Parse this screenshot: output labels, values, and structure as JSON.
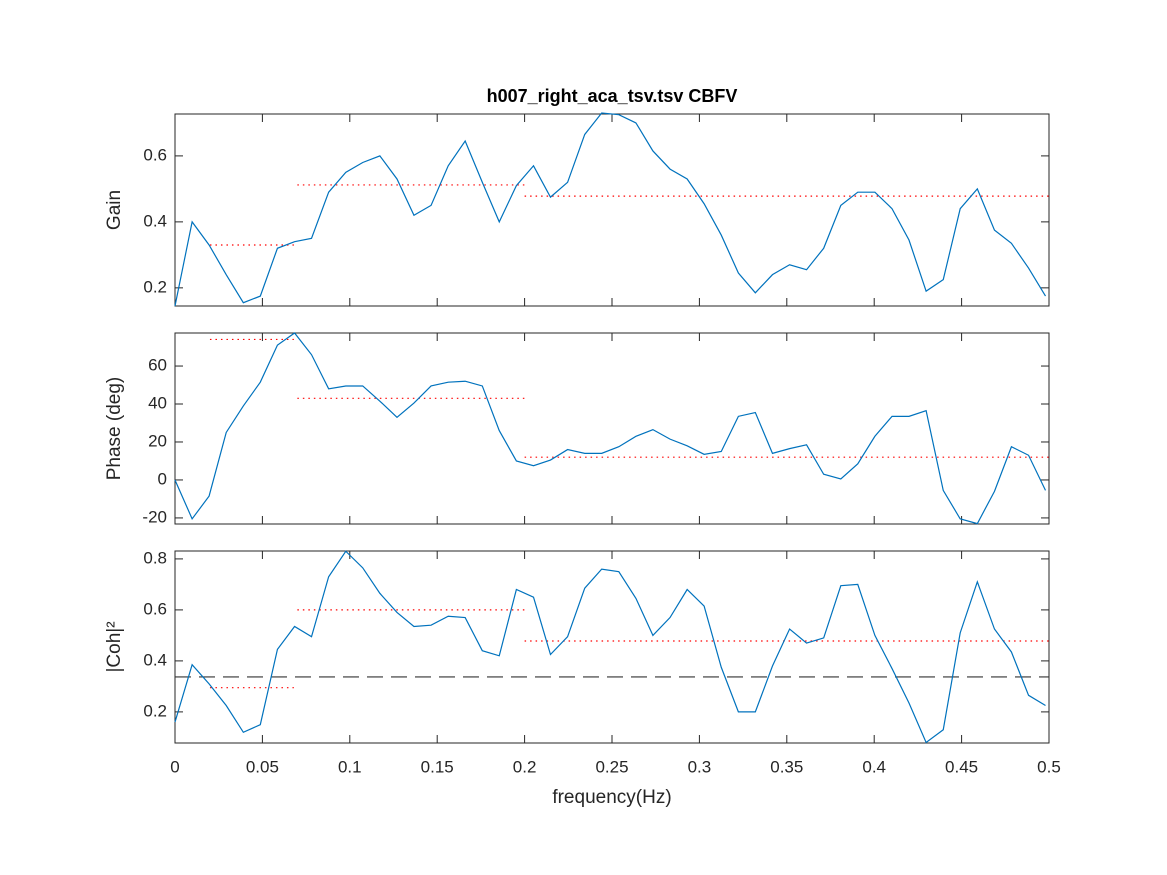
{
  "chart_data": [
    {
      "type": "line",
      "title": "h007_right_aca_tsv.tsv CBFV",
      "ylabel": "Gain",
      "x": [
        0,
        0.0098,
        0.0195,
        0.0293,
        0.0391,
        0.0488,
        0.0586,
        0.0684,
        0.0781,
        0.0879,
        0.0977,
        0.1074,
        0.1172,
        0.127,
        0.1367,
        0.1465,
        0.1563,
        0.166,
        0.1758,
        0.1855,
        0.1953,
        0.2051,
        0.2148,
        0.2246,
        0.2344,
        0.2441,
        0.2539,
        0.2637,
        0.2734,
        0.2832,
        0.293,
        0.3027,
        0.3125,
        0.3223,
        0.332,
        0.3418,
        0.3516,
        0.3613,
        0.3711,
        0.3809,
        0.3906,
        0.4004,
        0.4102,
        0.4199,
        0.4297,
        0.4395,
        0.4492,
        0.459,
        0.4688,
        0.4785,
        0.4883,
        0.498
      ],
      "values": [
        0.145,
        0.4,
        0.33,
        0.24,
        0.155,
        0.175,
        0.32,
        0.34,
        0.35,
        0.49,
        0.55,
        0.58,
        0.6,
        0.53,
        0.42,
        0.45,
        0.57,
        0.645,
        0.52,
        0.4,
        0.51,
        0.57,
        0.475,
        0.52,
        0.665,
        0.73,
        0.725,
        0.7,
        0.615,
        0.56,
        0.53,
        0.455,
        0.36,
        0.245,
        0.185,
        0.24,
        0.27,
        0.255,
        0.32,
        0.45,
        0.49,
        0.49,
        0.44,
        0.345,
        0.19,
        0.225,
        0.44,
        0.5,
        0.375,
        0.335,
        0.26,
        0.175
      ],
      "color": "#0072bd",
      "segments": [
        {
          "x": [
            0.02,
            0.068
          ],
          "value": 0.33
        },
        {
          "x": [
            0.07,
            0.2
          ],
          "value": 0.512
        },
        {
          "x": [
            0.2,
            0.5
          ],
          "value": 0.478
        }
      ],
      "segment_color": "#ff0000",
      "xlim": [
        0,
        0.5
      ],
      "xticks": [
        0,
        0.05,
        0.1,
        0.15,
        0.2,
        0.25,
        0.3,
        0.35,
        0.4,
        0.45,
        0.5
      ],
      "show_xtick_labels": false,
      "ylim": [
        0.145,
        0.727
      ],
      "yticks": [
        0.2,
        0.4,
        0.6
      ]
    },
    {
      "type": "line",
      "ylabel": "Phase (deg)",
      "x": [
        0,
        0.0098,
        0.0195,
        0.0293,
        0.0391,
        0.0488,
        0.0586,
        0.0684,
        0.0781,
        0.0879,
        0.0977,
        0.1074,
        0.1172,
        0.127,
        0.1367,
        0.1465,
        0.1563,
        0.166,
        0.1758,
        0.1855,
        0.1953,
        0.2051,
        0.2148,
        0.2246,
        0.2344,
        0.2441,
        0.2539,
        0.2637,
        0.2734,
        0.2832,
        0.293,
        0.3027,
        0.3125,
        0.3223,
        0.332,
        0.3418,
        0.3516,
        0.3613,
        0.3711,
        0.3809,
        0.3906,
        0.4004,
        0.4102,
        0.4199,
        0.4297,
        0.4395,
        0.4492,
        0.459,
        0.4688,
        0.4785,
        0.4883,
        0.498
      ],
      "values": [
        0,
        -20.5,
        -8.5,
        25,
        39,
        51.5,
        71,
        77.4,
        66,
        48,
        49.5,
        49.5,
        41.5,
        33,
        40.5,
        49.5,
        51.5,
        52,
        49.5,
        26,
        10,
        7.5,
        10.5,
        16,
        14,
        14,
        17.5,
        23,
        26.5,
        21.5,
        18,
        13.5,
        15,
        33.5,
        35.5,
        14,
        16.5,
        18.5,
        3,
        0.5,
        8.5,
        23,
        33.5,
        33.5,
        36.5,
        -5.5,
        -20.5,
        -23,
        -6,
        17.5,
        13,
        -5.5
      ],
      "color": "#0072bd",
      "segments": [
        {
          "x": [
            0.02,
            0.068
          ],
          "value": 74
        },
        {
          "x": [
            0.07,
            0.2
          ],
          "value": 43
        },
        {
          "x": [
            0.2,
            0.5
          ],
          "value": 12
        }
      ],
      "segment_color": "#ff0000",
      "xlim": [
        0,
        0.5
      ],
      "xticks": [
        0,
        0.05,
        0.1,
        0.15,
        0.2,
        0.25,
        0.3,
        0.35,
        0.4,
        0.45,
        0.5
      ],
      "show_xtick_labels": false,
      "ylim": [
        -23.2,
        77.4
      ],
      "yticks": [
        -20,
        0,
        20,
        40,
        60
      ]
    },
    {
      "type": "line",
      "ylabel": "|Coh|²",
      "xlabel": "frequency(Hz)",
      "x": [
        0,
        0.0098,
        0.0195,
        0.0293,
        0.0391,
        0.0488,
        0.0586,
        0.0684,
        0.0781,
        0.0879,
        0.0977,
        0.1074,
        0.1172,
        0.127,
        0.1367,
        0.1465,
        0.1563,
        0.166,
        0.1758,
        0.1855,
        0.1953,
        0.2051,
        0.2148,
        0.2246,
        0.2344,
        0.2441,
        0.2539,
        0.2637,
        0.2734,
        0.2832,
        0.293,
        0.3027,
        0.3125,
        0.3223,
        0.332,
        0.3418,
        0.3516,
        0.3613,
        0.3711,
        0.3809,
        0.3906,
        0.4004,
        0.4102,
        0.4199,
        0.4297,
        0.4395,
        0.4492,
        0.459,
        0.4688,
        0.4785,
        0.4883,
        0.498
      ],
      "values": [
        0.16,
        0.385,
        0.31,
        0.225,
        0.12,
        0.15,
        0.445,
        0.535,
        0.495,
        0.73,
        0.83,
        0.765,
        0.665,
        0.59,
        0.535,
        0.54,
        0.575,
        0.57,
        0.44,
        0.42,
        0.68,
        0.65,
        0.425,
        0.495,
        0.685,
        0.76,
        0.75,
        0.645,
        0.5,
        0.57,
        0.68,
        0.615,
        0.375,
        0.2,
        0.2,
        0.38,
        0.525,
        0.47,
        0.49,
        0.695,
        0.7,
        0.5,
        0.37,
        0.235,
        0.08,
        0.13,
        0.51,
        0.71,
        0.525,
        0.435,
        0.265,
        0.225
      ],
      "color": "#0072bd",
      "segments": [
        {
          "x": [
            0.02,
            0.068
          ],
          "value": 0.295
        },
        {
          "x": [
            0.07,
            0.2
          ],
          "value": 0.6
        },
        {
          "x": [
            0.2,
            0.5
          ],
          "value": 0.478
        }
      ],
      "segment_color": "#ff0000",
      "threshold": 0.337,
      "threshold_color": "#333333",
      "xlim": [
        0,
        0.5
      ],
      "xticks": [
        0,
        0.05,
        0.1,
        0.15,
        0.2,
        0.25,
        0.3,
        0.35,
        0.4,
        0.45,
        0.5
      ],
      "show_xtick_labels": true,
      "ylim": [
        0.078,
        0.831
      ],
      "yticks": [
        0.2,
        0.4,
        0.6,
        0.8
      ]
    }
  ]
}
